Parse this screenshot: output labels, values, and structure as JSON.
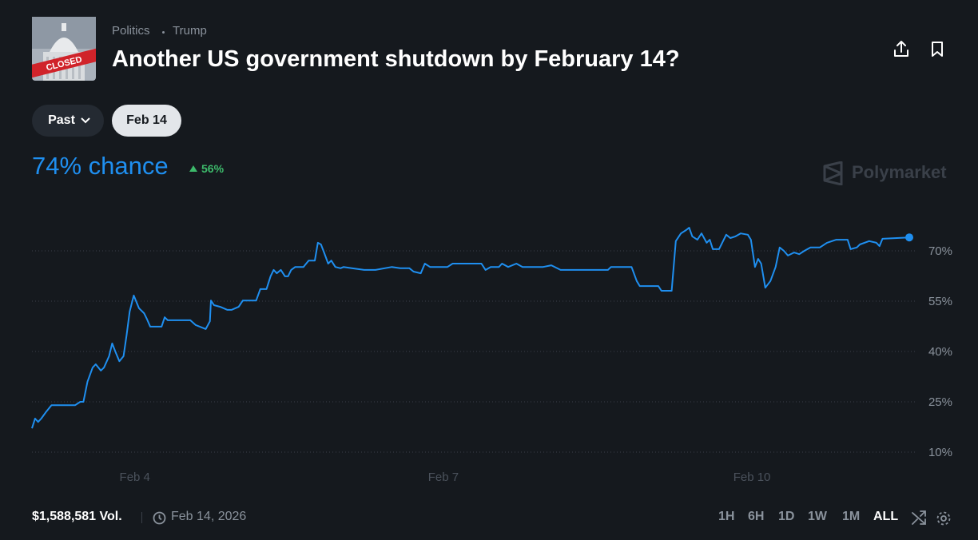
{
  "header": {
    "breadcrumb": [
      "Politics",
      "Trump"
    ],
    "title": "Another US government shutdown by February 14?",
    "thumbnail_text": "CLOSED"
  },
  "filters": [
    "Past",
    "Feb 14"
  ],
  "headline": "74% chance",
  "change": "56%",
  "brand": "Polymarket",
  "chart_data": {
    "type": "line",
    "color": "#1f8ff0",
    "x": [
      3.0,
      3.03,
      3.06,
      3.09,
      3.14,
      3.19,
      3.23,
      3.42,
      3.47,
      3.5,
      3.54,
      3.59,
      3.62,
      3.67,
      3.7,
      3.75,
      3.78,
      3.81,
      3.85,
      3.89,
      3.92,
      3.95,
      3.99,
      4.01,
      4.04,
      4.09,
      4.12,
      4.15,
      4.26,
      4.29,
      4.32,
      4.54,
      4.59,
      4.69,
      4.73,
      4.74,
      4.77,
      4.83,
      4.9,
      4.94,
      5.01,
      5.05,
      5.18,
      5.22,
      5.28,
      5.32,
      5.35,
      5.38,
      5.42,
      5.46,
      5.49,
      5.52,
      5.56,
      5.64,
      5.69,
      5.75,
      5.78,
      5.81,
      5.84,
      5.88,
      5.91,
      5.95,
      6.0,
      6.03,
      6.11,
      6.23,
      6.34,
      6.5,
      6.58,
      6.67,
      6.71,
      6.78,
      6.82,
      6.87,
      7.04,
      7.09,
      7.37,
      7.41,
      7.46,
      7.54,
      7.57,
      7.63,
      7.71,
      7.77,
      7.97,
      8.05,
      8.14,
      8.6,
      8.63,
      8.83,
      8.88,
      8.91,
      9.09,
      9.12,
      9.22,
      9.26,
      9.31,
      9.36,
      9.39,
      9.42,
      9.47,
      9.51,
      9.56,
      9.59,
      9.62,
      9.68,
      9.75,
      9.79,
      9.84,
      9.89,
      9.96,
      9.99,
      10.03,
      10.06,
      10.09,
      10.13,
      10.18,
      10.23,
      10.27,
      10.31,
      10.35,
      10.41,
      10.46,
      10.51,
      10.57,
      10.66,
      10.73,
      10.82,
      10.93,
      10.96,
      11.02,
      11.05,
      11.14,
      11.21,
      11.24,
      11.27,
      11.53
    ],
    "values": [
      17.1,
      20.0,
      19.0,
      20.0,
      22.1,
      24.0,
      24.0,
      24.0,
      25.0,
      25.0,
      31.0,
      35.2,
      36.2,
      34.3,
      35.2,
      38.6,
      42.4,
      40.0,
      37.1,
      38.6,
      44.8,
      51.9,
      56.7,
      55.2,
      52.9,
      51.4,
      49.5,
      47.4,
      47.4,
      50.2,
      49.3,
      49.3,
      47.9,
      46.7,
      49.0,
      55.2,
      53.8,
      53.3,
      52.4,
      52.4,
      53.3,
      55.2,
      55.2,
      58.6,
      58.6,
      62.4,
      64.3,
      63.3,
      64.3,
      62.4,
      62.4,
      64.3,
      65.2,
      65.2,
      67.1,
      67.1,
      72.4,
      71.9,
      69.5,
      66.2,
      67.1,
      65.2,
      64.8,
      65.2,
      64.8,
      64.3,
      64.3,
      65.2,
      64.8,
      64.8,
      63.8,
      63.3,
      66.2,
      65.2,
      65.2,
      66.2,
      66.2,
      64.3,
      65.2,
      65.2,
      66.2,
      65.2,
      66.2,
      65.2,
      65.2,
      65.7,
      64.3,
      64.3,
      65.2,
      65.2,
      61.0,
      59.5,
      59.5,
      58.1,
      58.1,
      72.9,
      75.2,
      76.2,
      76.9,
      74.3,
      73.3,
      75.2,
      72.4,
      73.3,
      70.5,
      70.5,
      74.8,
      73.8,
      74.3,
      75.2,
      74.8,
      73.3,
      65.2,
      67.6,
      66.2,
      59.0,
      61.0,
      65.2,
      71.0,
      70.0,
      68.6,
      69.5,
      69.0,
      70.0,
      71.0,
      71.0,
      72.4,
      73.3,
      73.3,
      70.5,
      71.0,
      71.9,
      72.9,
      72.4,
      71.4,
      73.6,
      74
    ],
    "xlim": [
      3,
      11.6
    ],
    "ylim": [
      10,
      80
    ],
    "xticks": [
      {
        "value": 4,
        "label": "Feb 4"
      },
      {
        "value": 7,
        "label": "Feb 7"
      },
      {
        "value": 10,
        "label": "Feb 10"
      }
    ],
    "yticks": [
      {
        "value": 10,
        "label": "10%"
      },
      {
        "value": 25,
        "label": "25%"
      },
      {
        "value": 40,
        "label": "40%"
      },
      {
        "value": 55,
        "label": "55%"
      },
      {
        "value": 70,
        "label": "70%"
      }
    ],
    "grid": true
  },
  "footer": {
    "volume": "$1,588,581 Vol.",
    "date": "Feb 14, 2026",
    "timeframes": [
      "1H",
      "6H",
      "1D",
      "1W",
      "1M",
      "ALL"
    ]
  }
}
